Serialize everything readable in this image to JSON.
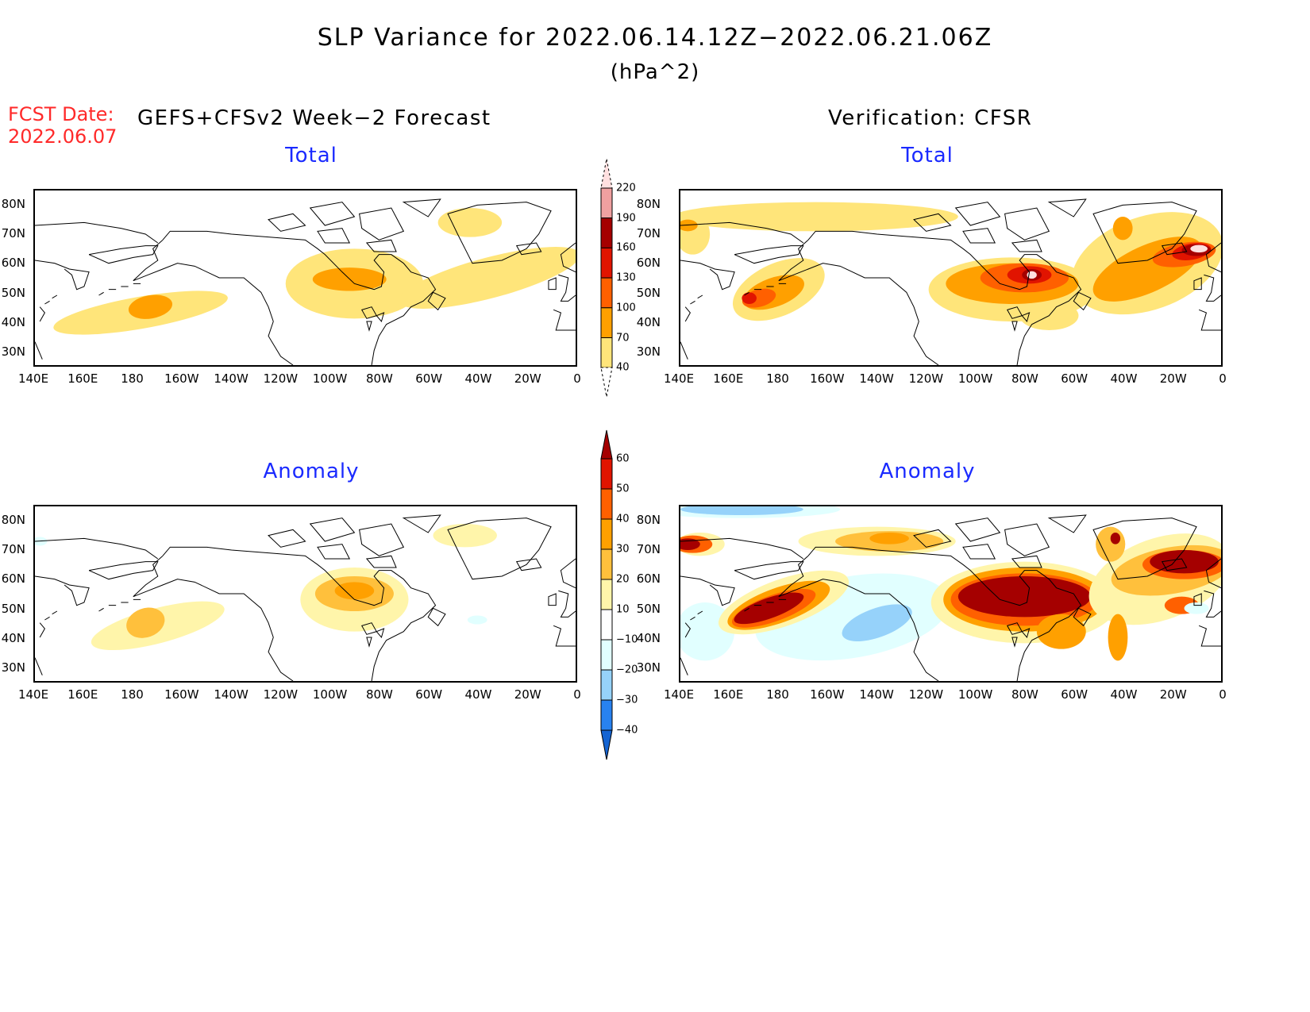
{
  "title": "SLP Variance for 2022.06.14.12Z−2022.06.21.06Z",
  "units": "(hPa^2)",
  "fcst_date_label": "FCST Date:",
  "fcst_date": "2022.06.07",
  "forecast_header": "GEFS+CFSv2 Week−2 Forecast",
  "verification_header": "Verification: CFSR",
  "panels": {
    "forecast_total": {
      "title": "Total"
    },
    "verification_total": {
      "title": "Total"
    },
    "forecast_anomaly": {
      "title": "Anomaly"
    },
    "verification_anomaly": {
      "title": "Anomaly"
    }
  },
  "lon_labels": [
    "140E",
    "160E",
    "180",
    "160W",
    "140W",
    "120W",
    "100W",
    "80W",
    "60W",
    "40W",
    "20W",
    "0"
  ],
  "lat_labels": [
    "80N",
    "70N",
    "60N",
    "50N",
    "40N",
    "30N"
  ],
  "total_colorbar": {
    "levels": [
      "220",
      "190",
      "160",
      "130",
      "100",
      "70",
      "40"
    ],
    "colors": [
      "#ffe0e0",
      "#f0a0a0",
      "#a50000",
      "#e11400",
      "#ff6000",
      "#ffa000",
      "#ffe57a"
    ]
  },
  "anomaly_colorbar": {
    "levels": [
      "60",
      "50",
      "40",
      "30",
      "20",
      "10",
      "−10",
      "−20",
      "−30",
      "−40"
    ],
    "colors": [
      "#a50000",
      "#e11400",
      "#ff6000",
      "#ffa000",
      "#ffc03c",
      "#fff5aa",
      "#ffffff",
      "#e1ffff",
      "#96d2fa",
      "#2882f0",
      "#1464d2"
    ]
  }
}
